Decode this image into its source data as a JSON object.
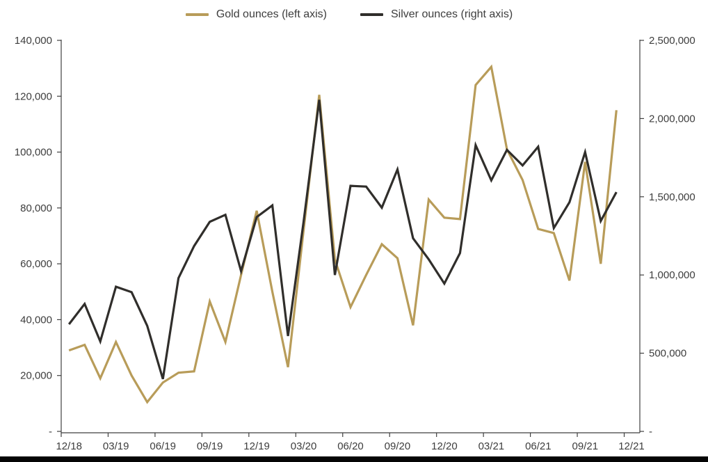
{
  "page": {
    "background": "#ffffff"
  },
  "legend": [
    {
      "label": "Gold ounces (left axis)",
      "color": "#B89C59"
    },
    {
      "label": "Silver ounces (right axis)",
      "color": "#302E2B"
    }
  ],
  "chart_data": {
    "type": "line",
    "title": "",
    "xlabel": "",
    "ylabel_left": "Gold ounces",
    "ylabel_right": "Silver ounces",
    "grid": false,
    "legend_position": "top",
    "x": [
      "12/18",
      "01/19",
      "02/19",
      "03/19",
      "04/19",
      "05/19",
      "06/19",
      "07/19",
      "08/19",
      "09/19",
      "10/19",
      "11/19",
      "12/19",
      "01/20",
      "02/20",
      "03/20",
      "04/20",
      "05/20",
      "06/20",
      "07/20",
      "08/20",
      "09/20",
      "10/20",
      "11/20",
      "12/20",
      "01/21",
      "02/21",
      "03/21",
      "04/21",
      "05/21",
      "06/21",
      "07/21",
      "08/21",
      "09/21",
      "10/21",
      "11/21"
    ],
    "x_tick_labels": [
      "12/18",
      "03/19",
      "06/19",
      "09/19",
      "12/19",
      "03/20",
      "06/20",
      "09/20",
      "12/20",
      "03/21",
      "06/21",
      "09/21",
      "12/21"
    ],
    "series": [
      {
        "name": "Gold ounces (left axis)",
        "axis": "left",
        "color": "#B89C59",
        "values": [
          29000,
          31000,
          19000,
          32000,
          20000,
          10500,
          17500,
          21000,
          21500,
          46500,
          32000,
          56000,
          79000,
          50000,
          23000,
          72000,
          120500,
          61500,
          44500,
          56000,
          67000,
          62000,
          38000,
          83000,
          76500,
          76000,
          124000,
          130500,
          101000,
          90000,
          72500,
          71000,
          54000,
          96500,
          60000,
          115000
        ]
      },
      {
        "name": "Silver ounces (right axis)",
        "axis": "right",
        "color": "#302E2B",
        "values": [
          685000,
          815000,
          575000,
          925000,
          890000,
          675000,
          335000,
          980000,
          1185000,
          1340000,
          1385000,
          1025000,
          1370000,
          1445000,
          610000,
          1340000,
          2120000,
          1000000,
          1570000,
          1565000,
          1430000,
          1675000,
          1235000,
          1100000,
          945000,
          1140000,
          1830000,
          1605000,
          1800000,
          1700000,
          1820000,
          1300000,
          1465000,
          1785000,
          1345000,
          1530000
        ]
      }
    ],
    "left_axis": {
      "min": 0,
      "max": 140000,
      "tick_interval": 20000,
      "labels": [
        "-",
        "20,000",
        "40,000",
        "60,000",
        "80,000",
        "100,000",
        "120,000",
        "140,000"
      ]
    },
    "right_axis": {
      "min": 0,
      "max": 2500000,
      "tick_interval": 500000,
      "labels": [
        "-",
        "500,000",
        "1,000,000",
        "1,500,000",
        "2,000,000",
        "2,500,000"
      ]
    }
  }
}
